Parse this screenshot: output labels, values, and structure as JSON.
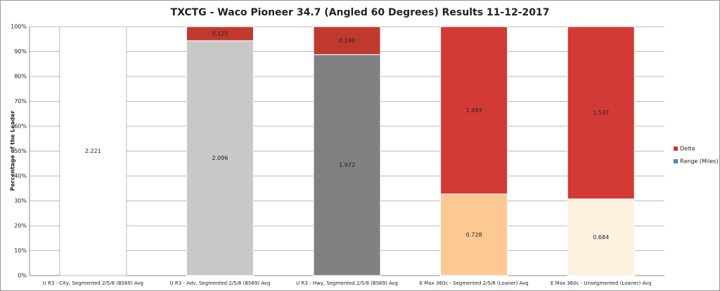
{
  "chart_data": {
    "type": "stacked_percent_bar",
    "title": "TXCTG - Waco Pioneer 34.7 (Angled 60 Degrees) Results 11-12-2017",
    "y_label": "Percentage of the Leader",
    "categories": [
      "U R3 - City, Segmented 2/5/8 (BS69) Avg",
      "U R3 - Adv, Segmented 2/5/8 (BS69) Avg",
      "U R3 - Hwy, Segmented 2/5/8 (BS69) Avg",
      "E Max 360c - Segmented 2/5/8 (Loaner) Avg",
      "E Max 360c - Unsegmented (Loaner) Avg"
    ],
    "series": [
      {
        "name": "Range (Miles)",
        "color": "#4f81bd",
        "colors": [
          "#ffffff",
          "#c8c8c8",
          "#808080",
          "#fcc995",
          "#fdf1e0"
        ],
        "values": [
          2.221,
          2.096,
          1.972,
          0.728,
          0.684
        ]
      },
      {
        "name": "Delta",
        "color": "#c0392f",
        "colors": [
          "#c0392f",
          "#c0392f",
          "#c0392f",
          "#d23a35",
          "#d23a35"
        ],
        "values": [
          null,
          0.125,
          0.249,
          1.493,
          1.537
        ]
      }
    ],
    "ylim": [
      0,
      100
    ],
    "yticks": [
      {
        "value": 0,
        "label": "0%"
      },
      {
        "value": 10,
        "label": "10%"
      },
      {
        "value": 20,
        "label": "20%"
      },
      {
        "value": 30,
        "label": "30%"
      },
      {
        "value": 40,
        "label": "40%"
      },
      {
        "value": 50,
        "label": "50%"
      },
      {
        "value": 60,
        "label": "60%"
      },
      {
        "value": 70,
        "label": "70%"
      },
      {
        "value": 80,
        "label": "80%"
      },
      {
        "value": 90,
        "label": "90%"
      },
      {
        "value": 100,
        "label": "100%"
      }
    ],
    "grid": true,
    "legend": "right"
  }
}
